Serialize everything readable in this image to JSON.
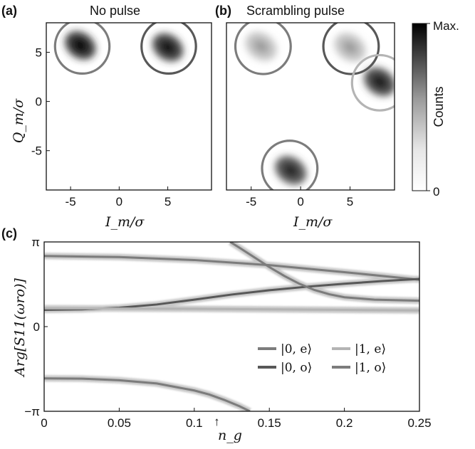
{
  "figure": {
    "panel_a": {
      "letter": "(a)",
      "title": "No pulse"
    },
    "panel_b": {
      "letter": "(b)",
      "title": "Scrambling pulse"
    },
    "panel_c": {
      "letter": "(c)"
    },
    "iq_xlabel": "I_m/σ",
    "iq_ylabel": "Q_m/σ",
    "colorbar": {
      "label": "Counts",
      "max_label": "Max.",
      "min_label": "0"
    },
    "c_xlabel": "n_g",
    "c_ylabel": "Arg[S11(ωro)]"
  },
  "colors": {
    "dark": "#585858",
    "mid": "#7c7c7c",
    "light": "#b4b4b4",
    "blob": "#222222"
  },
  "chart_data": [
    {
      "type": "heatmap",
      "id": "a",
      "title": "No pulse",
      "xlabel": "I_m/σ",
      "ylabel": "Q_m/σ",
      "xlim": [
        -7.5,
        9.5
      ],
      "ylim": [
        -9,
        8
      ],
      "xticks": [
        "-5",
        "0",
        "5"
      ],
      "xtick_values": [
        -5,
        0,
        5
      ],
      "yticks": [
        "5",
        "0",
        "-5"
      ],
      "ytick_values": [
        5,
        0,
        -5
      ],
      "blobs": [
        {
          "x": -4,
          "y": 5.7,
          "weight": 1.0
        },
        {
          "x": 5,
          "y": 5.5,
          "weight": 0.95
        }
      ],
      "circles": [
        {
          "x": -3.8,
          "y": 5.6,
          "r": 2.8,
          "color": "mid"
        },
        {
          "x": 5.1,
          "y": 5.6,
          "r": 2.8,
          "color": "dark"
        }
      ]
    },
    {
      "type": "heatmap",
      "id": "b",
      "title": "Scrambling pulse",
      "xlabel": "I_m/σ",
      "ylabel": "",
      "xlim": [
        -7.5,
        9.5
      ],
      "ylim": [
        -9,
        8
      ],
      "xticks": [
        "-5",
        "0",
        "5"
      ],
      "xtick_values": [
        -5,
        0,
        5
      ],
      "blobs": [
        {
          "x": -4,
          "y": 5.6,
          "weight": 0.3
        },
        {
          "x": 5,
          "y": 5.5,
          "weight": 0.3
        },
        {
          "x": 8,
          "y": 2,
          "weight": 0.9
        },
        {
          "x": -1,
          "y": -7,
          "weight": 0.85
        }
      ],
      "circles": [
        {
          "x": -3.8,
          "y": 5.6,
          "r": 2.8,
          "color": "mid"
        },
        {
          "x": 5.1,
          "y": 5.6,
          "r": 2.8,
          "color": "dark"
        },
        {
          "x": 8.0,
          "y": 1.9,
          "r": 2.8,
          "color": "light"
        },
        {
          "x": -1.1,
          "y": -6.8,
          "r": 2.8,
          "color": "mid"
        }
      ]
    },
    {
      "type": "line",
      "id": "c",
      "xlabel": "n_g",
      "ylabel": "Arg[S11(ωro)]",
      "xlim": [
        0,
        0.25
      ],
      "ylim": [
        -3.1416,
        3.1416
      ],
      "xticks": [
        "0",
        "0.05",
        "0.1",
        "0.15",
        "0.2",
        "0.25"
      ],
      "xtick_values": [
        0,
        0.05,
        0.1,
        0.15,
        0.2,
        0.25
      ],
      "yticks": [
        "π",
        "0",
        "−π"
      ],
      "ytick_values": [
        3.1416,
        0,
        -3.1416
      ],
      "marker": {
        "x": 0.115,
        "symbol": "↑"
      },
      "series": [
        {
          "legend": "|0, e⟩",
          "color": "mid",
          "x": [
            0,
            0.05,
            0.1,
            0.15,
            0.2,
            0.25
          ],
          "y": [
            2.62,
            2.58,
            2.47,
            2.28,
            2.02,
            1.74
          ]
        },
        {
          "legend": "|0, o⟩",
          "color": "dark",
          "x": [
            0,
            0.025,
            0.05,
            0.075,
            0.1,
            0.125,
            0.15,
            0.175,
            0.2,
            0.225,
            0.25
          ],
          "y": [
            0.62,
            0.64,
            0.7,
            0.82,
            1.0,
            1.19,
            1.35,
            1.48,
            1.59,
            1.69,
            1.77
          ]
        },
        {
          "legend": "|1, e⟩",
          "color": "light",
          "x": [
            0,
            0.05,
            0.1,
            0.15,
            0.2,
            0.25
          ],
          "y": [
            0.68,
            0.67,
            0.66,
            0.64,
            0.62,
            0.6
          ]
        },
        {
          "legend": "|1, o⟩",
          "color": "mid",
          "x": [
            0,
            0.025,
            0.05,
            0.075,
            0.1,
            0.11,
            0.12,
            0.13,
            0.137
          ],
          "y": [
            -1.92,
            -1.93,
            -1.99,
            -2.11,
            -2.37,
            -2.52,
            -2.72,
            -2.95,
            -3.14
          ]
        },
        {
          "legend": "",
          "color": "mid",
          "x": [
            0.124,
            0.13,
            0.14,
            0.15,
            0.16,
            0.17,
            0.18,
            0.19,
            0.2,
            0.22,
            0.25
          ],
          "y": [
            3.14,
            2.93,
            2.57,
            2.21,
            1.88,
            1.59,
            1.36,
            1.2,
            1.09,
            1.0,
            0.96
          ]
        }
      ]
    }
  ]
}
